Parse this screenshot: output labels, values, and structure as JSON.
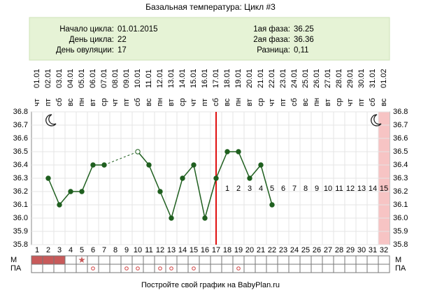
{
  "title": "Базальная температура: Цикл #3",
  "info": {
    "left": [
      {
        "label": "Начало цикла:",
        "value": "01.01.2015"
      },
      {
        "label": "День цикла:",
        "value": "22"
      },
      {
        "label": "День овуляции:",
        "value": "17"
      }
    ],
    "right": [
      {
        "label": "1ая фаза:",
        "value": "36.25"
      },
      {
        "label": "2ая фаза:",
        "value": "36.36"
      },
      {
        "label": "Разница:",
        "value": "0,11"
      }
    ]
  },
  "chart_data": {
    "type": "line",
    "x": [
      1,
      2,
      3,
      4,
      5,
      6,
      7,
      8,
      9,
      10,
      11,
      12,
      13,
      14,
      15,
      16,
      17,
      18,
      19,
      20,
      21,
      22,
      23,
      24,
      25,
      26,
      27,
      28,
      29,
      30,
      31,
      32
    ],
    "dates": [
      "01.01",
      "02.01",
      "03.01",
      "04.01",
      "05.01",
      "06.01",
      "07.01",
      "08.01",
      "09.01",
      "10.01",
      "11.01",
      "12.01",
      "13.01",
      "14.01",
      "15.01",
      "16.01",
      "17.01",
      "18.01",
      "19.01",
      "20.01",
      "21.01",
      "22.01",
      "23.01",
      "24.01",
      "25.01",
      "26.01",
      "27.01",
      "28.01",
      "29.01",
      "30.01",
      "31.01",
      "01.02"
    ],
    "weekdays": [
      "чт",
      "пт",
      "сб",
      "вс",
      "пн",
      "вт",
      "ср",
      "чт",
      "пт",
      "сб",
      "вс",
      "пн",
      "вт",
      "ср",
      "чт",
      "пт",
      "сб",
      "вс",
      "пн",
      "вт",
      "ср",
      "чт",
      "пт",
      "сб",
      "вс",
      "пн",
      "вт",
      "ср",
      "чт",
      "пт",
      "сб",
      "вс"
    ],
    "values": [
      null,
      36.3,
      36.1,
      36.2,
      36.2,
      36.4,
      36.4,
      null,
      null,
      36.5,
      36.4,
      36.2,
      36.0,
      36.3,
      36.4,
      36.0,
      36.3,
      36.5,
      36.5,
      36.3,
      36.4,
      36.1,
      null,
      null,
      null,
      null,
      null,
      null,
      null,
      null,
      null,
      null
    ],
    "color": "#1f5f1f",
    "hollow_points": [
      10
    ],
    "ylim": [
      35.8,
      36.8
    ],
    "yticks": [
      35.8,
      35.9,
      {
        "value": 36.0,
        "label": "36.0"
      },
      36.1,
      36.2,
      36.3,
      36.4,
      36.5,
      36.6,
      36.7,
      36.8
    ],
    "grid": true,
    "ovulation_day": 17,
    "ovulation_color": "#e01010",
    "luteal_days": [
      1,
      2,
      3,
      4,
      5,
      6,
      7,
      8,
      9,
      10,
      11,
      12,
      13,
      14,
      15
    ],
    "luteal_color": "#c0504d",
    "highlight_day": 32,
    "highlight_color": "#f7c4c4",
    "menstruation": {
      "label": "М",
      "days": [
        1,
        2,
        3
      ],
      "star_days": [
        5
      ],
      "color": "#c85a5a"
    },
    "intercourse": {
      "label": "ПА",
      "days": [
        6,
        9,
        10,
        12,
        13,
        15,
        19
      ],
      "color": "#d04040"
    }
  },
  "footer": "Постройте свой график на BabyPlan.ru"
}
